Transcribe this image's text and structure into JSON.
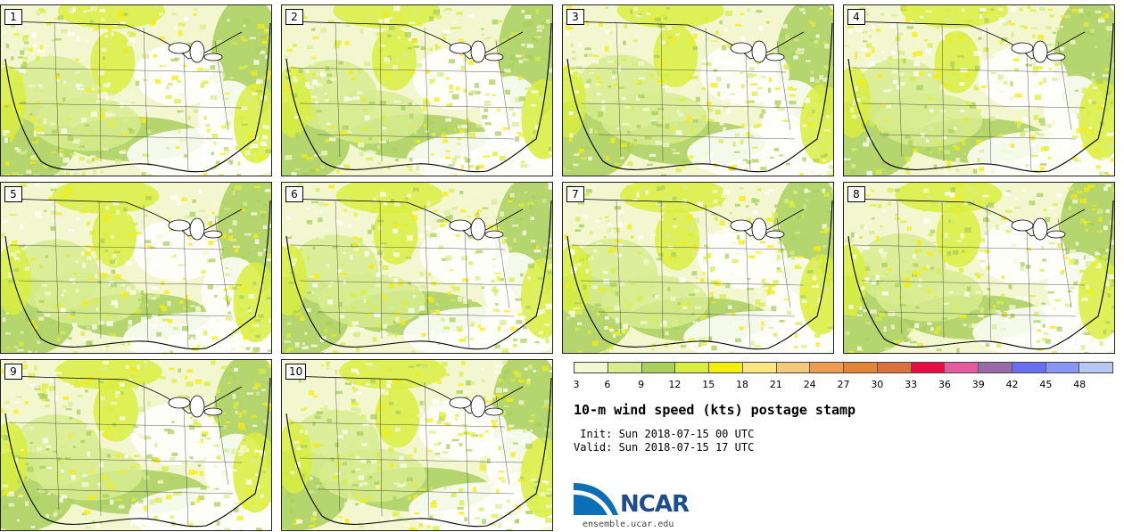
{
  "panels": [
    {
      "label": "1"
    },
    {
      "label": "2"
    },
    {
      "label": "3"
    },
    {
      "label": "4"
    },
    {
      "label": "5"
    },
    {
      "label": "6"
    },
    {
      "label": "7"
    },
    {
      "label": "8"
    },
    {
      "label": "9"
    },
    {
      "label": "10"
    }
  ],
  "colorbar": {
    "colors": [
      "#f4f7d4",
      "#d7ec8f",
      "#a9cf5d",
      "#d8ee40",
      "#f5ee0a",
      "#fbe782",
      "#f4ca7a",
      "#ec9d4f",
      "#e38537",
      "#d8743b",
      "#ea0b45",
      "#e65aa0",
      "#9a6aa6",
      "#6a6ef0",
      "#8896f5",
      "#b7c8f5"
    ],
    "ticks": [
      "3",
      "6",
      "9",
      "12",
      "15",
      "18",
      "21",
      "24",
      "27",
      "30",
      "33",
      "36",
      "39",
      "42",
      "45",
      "48"
    ]
  },
  "title": "10-m wind speed (kts) postage stamp",
  "init": " Init: Sun 2018-07-15 00 UTC",
  "valid": "Valid: Sun 2018-07-15 17 UTC",
  "logo": {
    "name": "ncar-logo",
    "text": "NCAR"
  },
  "url": "ensemble.ucar.edu"
}
